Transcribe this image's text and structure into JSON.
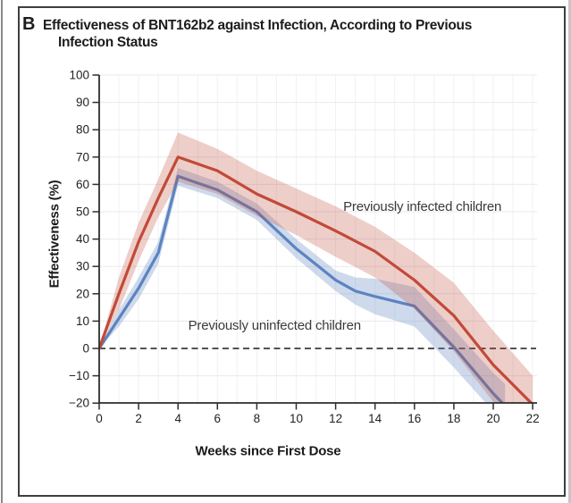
{
  "page": {
    "panel_label": "B",
    "title_line1": "Effectiveness of BNT162b2 against Infection, According to Previous",
    "title_line2": "Infection Status"
  },
  "chart_data": {
    "type": "line",
    "title": "Effectiveness of BNT162b2 against Infection, According to Previous Infection Status",
    "xlabel": "Weeks since First Dose",
    "ylabel": "Effectiveness (%)",
    "xlim": [
      0,
      22
    ],
    "ylim": [
      -20,
      100
    ],
    "x_ticks": [
      0,
      2,
      4,
      6,
      8,
      10,
      12,
      14,
      16,
      18,
      20,
      22
    ],
    "x_tick_labels": [
      "0",
      "2",
      "4",
      "6",
      "8",
      "10",
      "12",
      "14",
      "16",
      "18",
      "20",
      "22"
    ],
    "y_ticks": [
      100,
      90,
      80,
      70,
      60,
      50,
      40,
      30,
      20,
      10,
      0,
      -10,
      -20
    ],
    "y_tick_labels": [
      "100",
      "90",
      "80",
      "70",
      "60",
      "50",
      "40",
      "30",
      "20",
      "10",
      "0",
      "−10",
      "−20"
    ],
    "grid": true,
    "legend_position": "none",
    "zero_reference_line": {
      "y": 0,
      "style": "dashed",
      "color": "#1a1a1a"
    },
    "series": [
      {
        "name": "Previously uninfected children",
        "color": "#5c83c1",
        "band_color": "rgba(92,131,193,0.30)",
        "x": [
          0,
          1,
          2,
          3,
          4,
          6,
          8,
          10,
          12,
          13,
          14,
          16,
          18,
          20,
          20.6
        ],
        "y": [
          0,
          11,
          22,
          35,
          63,
          58,
          50,
          36.5,
          25,
          21,
          19,
          15.5,
          0.5,
          -16.5,
          -21
        ],
        "upper": [
          0,
          14,
          26,
          39,
          66,
          61,
          53,
          40,
          28.5,
          26,
          25.5,
          22.5,
          7,
          -9,
          -13
        ],
        "lower": [
          0,
          8,
          18,
          31,
          59.5,
          55,
          47,
          33,
          21,
          16,
          12.5,
          8,
          -7,
          -23,
          -28
        ]
      },
      {
        "name": "Previously infected children",
        "color": "#c14a38",
        "band_color": "rgba(193,74,56,0.27)",
        "x": [
          0,
          1,
          2,
          3,
          4,
          6,
          8,
          10,
          12,
          14,
          16,
          18,
          20,
          22
        ],
        "y": [
          0,
          20,
          39,
          55,
          70,
          65,
          56.5,
          50,
          43,
          35.5,
          25,
          12,
          -6,
          -20.5
        ],
        "upper": [
          0,
          26,
          46,
          62,
          79,
          73,
          65,
          58.5,
          52,
          44.5,
          35,
          24,
          6.5,
          -10
        ],
        "lower": [
          0,
          14,
          32,
          48,
          61,
          56.5,
          48.5,
          41.5,
          33.5,
          26,
          14.5,
          -1,
          -19.5,
          -32
        ]
      }
    ],
    "annotations": [
      {
        "text": "Previously infected children",
        "x": 16.4,
        "y": 52
      },
      {
        "text": "Previously uninfected children",
        "x": 8.9,
        "y": 8.5
      }
    ]
  }
}
